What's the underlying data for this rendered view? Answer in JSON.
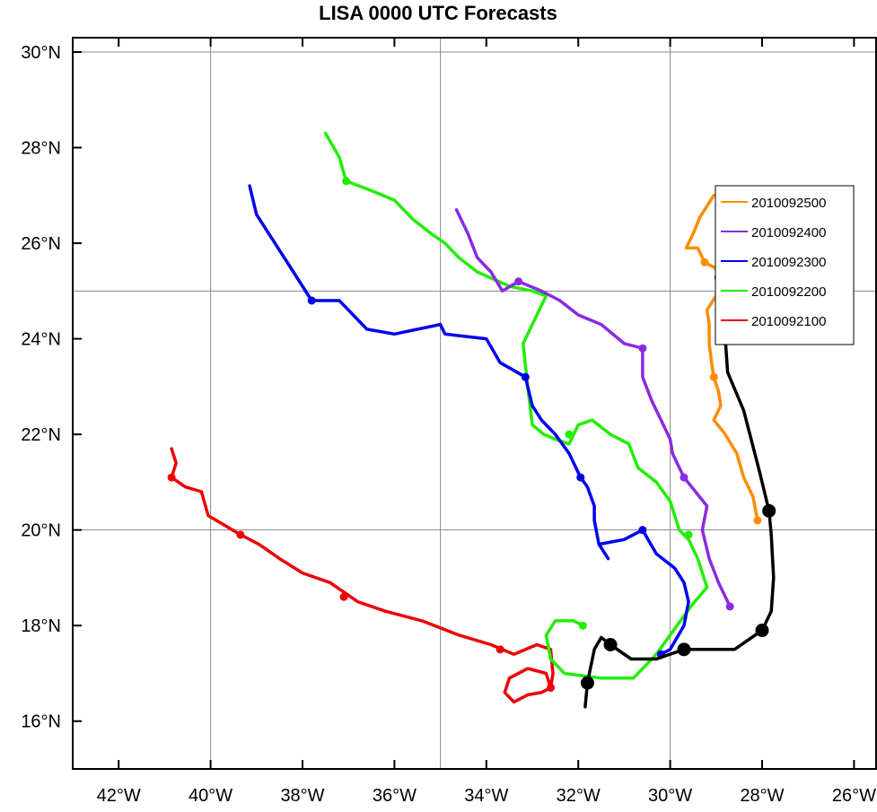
{
  "chart_data": {
    "type": "line",
    "title": "LISA 0000 UTC Forecasts",
    "xlabel": "",
    "ylabel": "",
    "xlim": [
      -43,
      -25.5
    ],
    "ylim": [
      15,
      30.3
    ],
    "grid": true,
    "legend_position": "top-right",
    "x_ticks": [
      {
        "value": -42,
        "label": "42°W"
      },
      {
        "value": -40,
        "label": "40°W"
      },
      {
        "value": -38,
        "label": "38°W"
      },
      {
        "value": -36,
        "label": "36°W"
      },
      {
        "value": -34,
        "label": "34°W"
      },
      {
        "value": -32,
        "label": "32°W"
      },
      {
        "value": -30,
        "label": "30°W"
      },
      {
        "value": -28,
        "label": "28°W"
      },
      {
        "value": -26,
        "label": "26°W"
      }
    ],
    "y_ticks": [
      {
        "value": 16,
        "label": "16°N"
      },
      {
        "value": 18,
        "label": "18°N"
      },
      {
        "value": 20,
        "label": "20°N"
      },
      {
        "value": 22,
        "label": "22°N"
      },
      {
        "value": 24,
        "label": "24°N"
      },
      {
        "value": 26,
        "label": "26°N"
      },
      {
        "value": 28,
        "label": "28°N"
      },
      {
        "value": 30,
        "label": "30°N"
      }
    ],
    "grid_lon": [
      -40,
      -35,
      -30,
      -25
    ],
    "grid_lat": [
      15,
      20,
      25,
      30
    ],
    "observed_track": {
      "color": "#000000",
      "points": [
        [
          -31.85,
          16.3
        ],
        [
          -31.8,
          16.8
        ],
        [
          -31.65,
          17.5
        ],
        [
          -31.5,
          17.75
        ],
        [
          -31.3,
          17.6
        ],
        [
          -30.85,
          17.3
        ],
        [
          -30.3,
          17.3
        ],
        [
          -29.7,
          17.5
        ],
        [
          -28.6,
          17.5
        ],
        [
          -28.0,
          17.9
        ],
        [
          -27.8,
          18.3
        ],
        [
          -27.75,
          19.0
        ],
        [
          -27.8,
          19.9
        ],
        [
          -27.85,
          20.4
        ],
        [
          -28.05,
          21.2
        ],
        [
          -28.4,
          22.5
        ],
        [
          -28.75,
          23.3
        ],
        [
          -28.8,
          24.0
        ],
        [
          -28.95,
          24.7
        ],
        [
          -29.0,
          25.3
        ]
      ],
      "markers": [
        [
          -31.8,
          16.8
        ],
        [
          -31.3,
          17.6
        ],
        [
          -29.7,
          17.5
        ],
        [
          -28.0,
          17.9
        ],
        [
          -27.85,
          20.4
        ],
        [
          -28.8,
          24.0
        ]
      ]
    },
    "series": [
      {
        "name": "2010092500",
        "color": "#ff8c00",
        "points": [
          [
            -29.05,
            27.0
          ],
          [
            -29.35,
            26.55
          ],
          [
            -29.5,
            26.2
          ],
          [
            -29.65,
            25.9
          ],
          [
            -29.4,
            25.9
          ],
          [
            -29.25,
            25.6
          ],
          [
            -29.05,
            25.5
          ],
          [
            -28.95,
            25.4
          ],
          [
            -29.0,
            24.9
          ],
          [
            -29.2,
            24.6
          ],
          [
            -29.15,
            24.3
          ],
          [
            -29.15,
            23.9
          ],
          [
            -29.1,
            23.5
          ],
          [
            -29.05,
            23.2
          ],
          [
            -28.95,
            22.9
          ],
          [
            -28.9,
            22.6
          ],
          [
            -29.05,
            22.3
          ],
          [
            -28.8,
            22.0
          ],
          [
            -28.55,
            21.6
          ],
          [
            -28.4,
            21.1
          ],
          [
            -28.2,
            20.7
          ],
          [
            -28.1,
            20.2
          ]
        ],
        "markers": [
          [
            -29.25,
            25.6
          ],
          [
            -29.05,
            23.2
          ],
          [
            -28.1,
            20.2
          ]
        ]
      },
      {
        "name": "2010092400",
        "color": "#8a2be2",
        "points": [
          [
            -34.65,
            26.7
          ],
          [
            -34.4,
            26.2
          ],
          [
            -34.2,
            25.7
          ],
          [
            -33.9,
            25.4
          ],
          [
            -33.65,
            25.0
          ],
          [
            -33.3,
            25.2
          ],
          [
            -32.8,
            25.0
          ],
          [
            -32.4,
            24.8
          ],
          [
            -32.0,
            24.5
          ],
          [
            -31.5,
            24.3
          ],
          [
            -31.0,
            23.9
          ],
          [
            -30.6,
            23.8
          ],
          [
            -30.6,
            23.2
          ],
          [
            -30.4,
            22.7
          ],
          [
            -30.2,
            22.3
          ],
          [
            -30.0,
            21.9
          ],
          [
            -29.95,
            21.6
          ],
          [
            -29.85,
            21.4
          ],
          [
            -29.7,
            21.1
          ],
          [
            -29.45,
            20.8
          ],
          [
            -29.2,
            20.5
          ],
          [
            -29.3,
            20.0
          ],
          [
            -29.15,
            19.4
          ],
          [
            -28.95,
            18.9
          ],
          [
            -28.7,
            18.4
          ]
        ],
        "markers": [
          [
            -33.3,
            25.2
          ],
          [
            -30.6,
            23.8
          ],
          [
            -29.7,
            21.1
          ],
          [
            -28.7,
            18.4
          ]
        ]
      },
      {
        "name": "2010092300",
        "color": "#0000ee",
        "points": [
          [
            -39.15,
            27.2
          ],
          [
            -39.0,
            26.6
          ],
          [
            -38.6,
            26.0
          ],
          [
            -38.2,
            25.4
          ],
          [
            -37.8,
            24.8
          ],
          [
            -37.2,
            24.8
          ],
          [
            -36.6,
            24.2
          ],
          [
            -36.0,
            24.1
          ],
          [
            -35.0,
            24.3
          ],
          [
            -34.9,
            24.1
          ],
          [
            -34.0,
            24.0
          ],
          [
            -33.7,
            23.5
          ],
          [
            -33.15,
            23.2
          ],
          [
            -33.0,
            22.6
          ],
          [
            -32.8,
            22.3
          ],
          [
            -32.5,
            22.0
          ],
          [
            -32.2,
            21.6
          ],
          [
            -31.95,
            21.1
          ],
          [
            -31.8,
            20.9
          ],
          [
            -31.65,
            20.5
          ],
          [
            -31.65,
            20.2
          ],
          [
            -31.55,
            19.7
          ],
          [
            -31.35,
            19.4
          ],
          [
            -31.55,
            19.7
          ],
          [
            -31.0,
            19.8
          ],
          [
            -30.6,
            20.0
          ],
          [
            -30.3,
            19.5
          ],
          [
            -29.9,
            19.2
          ],
          [
            -29.7,
            18.9
          ],
          [
            -29.6,
            18.5
          ],
          [
            -29.7,
            18.0
          ],
          [
            -30.0,
            17.5
          ],
          [
            -30.2,
            17.4
          ]
        ],
        "markers": [
          [
            -37.8,
            24.8
          ],
          [
            -33.15,
            23.2
          ],
          [
            -31.95,
            21.1
          ],
          [
            -30.6,
            20.0
          ],
          [
            -30.2,
            17.4
          ]
        ]
      },
      {
        "name": "2010092200",
        "color": "#22ee00",
        "points": [
          [
            -37.5,
            28.3
          ],
          [
            -37.2,
            27.8
          ],
          [
            -37.05,
            27.3
          ],
          [
            -36.5,
            27.1
          ],
          [
            -36.0,
            26.9
          ],
          [
            -35.6,
            26.5
          ],
          [
            -35.2,
            26.2
          ],
          [
            -34.9,
            26.0
          ],
          [
            -34.6,
            25.7
          ],
          [
            -34.2,
            25.4
          ],
          [
            -33.5,
            25.1
          ],
          [
            -33.0,
            25.0
          ],
          [
            -32.7,
            24.9
          ],
          [
            -33.0,
            24.3
          ],
          [
            -33.2,
            23.9
          ],
          [
            -33.1,
            23.0
          ],
          [
            -33.0,
            22.2
          ],
          [
            -32.75,
            22.0
          ],
          [
            -32.5,
            21.9
          ],
          [
            -32.2,
            21.8
          ],
          [
            -32.0,
            22.2
          ],
          [
            -31.7,
            22.3
          ],
          [
            -31.3,
            22.0
          ],
          [
            -30.9,
            21.8
          ],
          [
            -30.7,
            21.3
          ],
          [
            -30.3,
            21.0
          ],
          [
            -30.0,
            20.6
          ],
          [
            -29.8,
            20.0
          ],
          [
            -29.6,
            19.8
          ],
          [
            -29.4,
            19.4
          ],
          [
            -29.2,
            18.8
          ],
          [
            -29.55,
            18.4
          ],
          [
            -30.0,
            17.8
          ],
          [
            -30.3,
            17.4
          ],
          [
            -30.5,
            17.2
          ],
          [
            -30.8,
            16.9
          ],
          [
            -31.5,
            16.9
          ],
          [
            -32.3,
            17.0
          ],
          [
            -32.6,
            17.3
          ],
          [
            -32.7,
            17.8
          ],
          [
            -32.5,
            18.1
          ],
          [
            -32.1,
            18.1
          ],
          [
            -31.9,
            18.0
          ]
        ],
        "markers": [
          [
            -37.05,
            27.3
          ],
          [
            -32.2,
            22.0
          ],
          [
            -29.6,
            19.9
          ],
          [
            -31.9,
            18.0
          ]
        ]
      },
      {
        "name": "2010092100",
        "color": "#ee0000",
        "points": [
          [
            -40.85,
            21.7
          ],
          [
            -40.75,
            21.4
          ],
          [
            -40.85,
            21.1
          ],
          [
            -40.55,
            20.9
          ],
          [
            -40.2,
            20.8
          ],
          [
            -40.05,
            20.3
          ],
          [
            -39.7,
            20.1
          ],
          [
            -39.35,
            19.9
          ],
          [
            -38.95,
            19.7
          ],
          [
            -38.5,
            19.4
          ],
          [
            -38.0,
            19.1
          ],
          [
            -37.4,
            18.9
          ],
          [
            -36.8,
            18.5
          ],
          [
            -36.2,
            18.3
          ],
          [
            -35.4,
            18.1
          ],
          [
            -34.6,
            17.8
          ],
          [
            -33.9,
            17.6
          ],
          [
            -33.4,
            17.4
          ],
          [
            -32.9,
            17.6
          ],
          [
            -32.6,
            17.5
          ],
          [
            -32.55,
            17.0
          ],
          [
            -32.6,
            16.7
          ],
          [
            -32.8,
            16.6
          ],
          [
            -33.1,
            16.55
          ],
          [
            -33.4,
            16.4
          ],
          [
            -33.6,
            16.6
          ],
          [
            -33.5,
            16.9
          ],
          [
            -33.1,
            17.1
          ],
          [
            -32.7,
            17.0
          ],
          [
            -32.6,
            16.7
          ]
        ],
        "markers": [
          [
            -40.85,
            21.1
          ],
          [
            -39.35,
            19.9
          ],
          [
            -37.1,
            18.6
          ],
          [
            -33.7,
            17.5
          ],
          [
            -32.6,
            16.7
          ]
        ]
      }
    ]
  }
}
